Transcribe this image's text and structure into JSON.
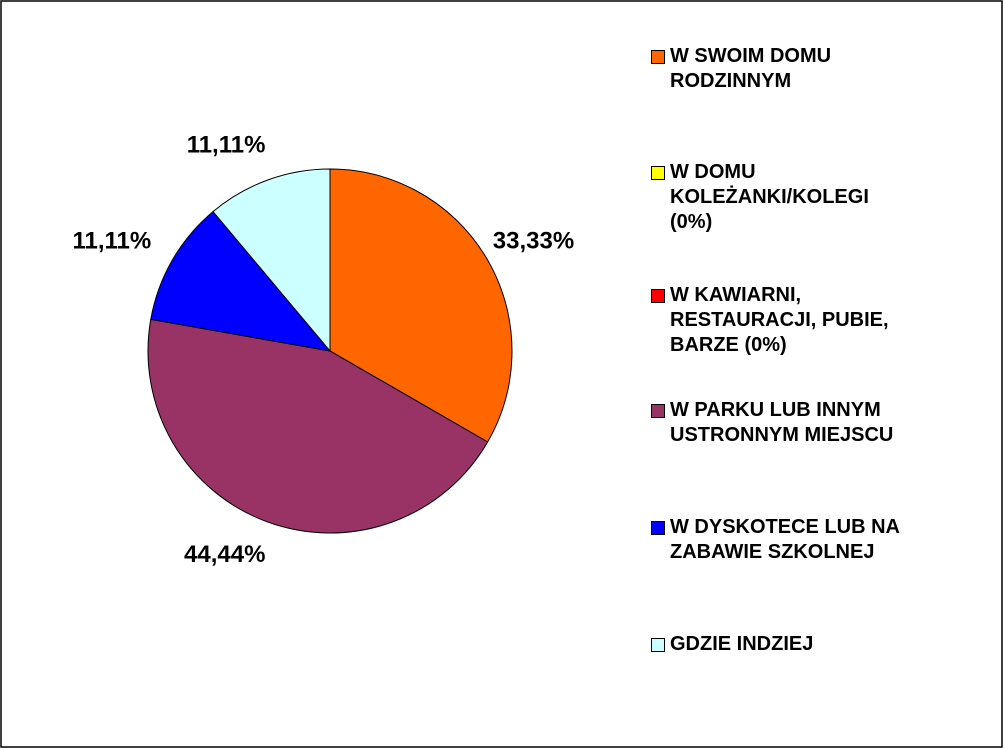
{
  "chart_data": {
    "type": "pie",
    "categories": [
      "W SWOIM DOMU\nRODZINNYM",
      "W DOMU\nKOLEŻANKI/KOLEGI\n(0%)",
      "W KAWIARNI,\nRESTAURACJI, PUBIE,\nBARZE (0%)",
      "W PARKU LUB INNYM\nUSTRONNYM MIEJSCU",
      "W DYSKOTECE LUB NA\nZABAWIE SZKOLNEJ",
      "GDZIE INDZIEJ"
    ],
    "values": [
      33.33,
      0,
      0,
      44.44,
      11.11,
      11.11
    ],
    "value_labels": [
      "33,33%",
      null,
      null,
      "44,44%",
      "11,11%",
      "11,11%"
    ],
    "colors": [
      "#FF6600",
      "#FFFF00",
      "#FF0000",
      "#993366",
      "#0000FF",
      "#CCFFFF"
    ],
    "legend": "right"
  }
}
